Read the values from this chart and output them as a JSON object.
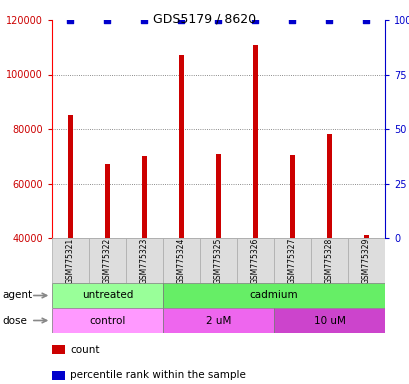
{
  "title": "GDS5179 / 8620",
  "samples": [
    "GSM775321",
    "GSM775322",
    "GSM775323",
    "GSM775324",
    "GSM775325",
    "GSM775326",
    "GSM775327",
    "GSM775328",
    "GSM775329"
  ],
  "counts": [
    85000,
    67000,
    70000,
    107000,
    71000,
    111000,
    70500,
    78000,
    41000
  ],
  "percentile_ranks": [
    100,
    100,
    100,
    100,
    100,
    100,
    100,
    100,
    100
  ],
  "ylim_left": [
    40000,
    120000
  ],
  "ylim_right": [
    0,
    100
  ],
  "yticks_left": [
    40000,
    60000,
    80000,
    100000,
    120000
  ],
  "yticks_right": [
    0,
    25,
    50,
    75,
    100
  ],
  "bar_color": "#cc0000",
  "dot_color": "#0000cc",
  "agent_labels": [
    {
      "text": "untreated",
      "start": 0,
      "end": 3,
      "color": "#99ff99"
    },
    {
      "text": "cadmium",
      "start": 3,
      "end": 9,
      "color": "#66ee66"
    }
  ],
  "dose_labels": [
    {
      "text": "control",
      "start": 0,
      "end": 3,
      "color": "#ff99ff"
    },
    {
      "text": "2 uM",
      "start": 3,
      "end": 6,
      "color": "#ee66ee"
    },
    {
      "text": "10 uM",
      "start": 6,
      "end": 9,
      "color": "#cc44cc"
    }
  ],
  "row_label_agent": "agent",
  "row_label_dose": "dose",
  "legend_count_color": "#cc0000",
  "legend_percentile_color": "#0000cc",
  "background_color": "#ffffff",
  "grid_color": "#666666",
  "tick_label_color_left": "#cc0000",
  "tick_label_color_right": "#0000cc",
  "bar_width": 0.15
}
